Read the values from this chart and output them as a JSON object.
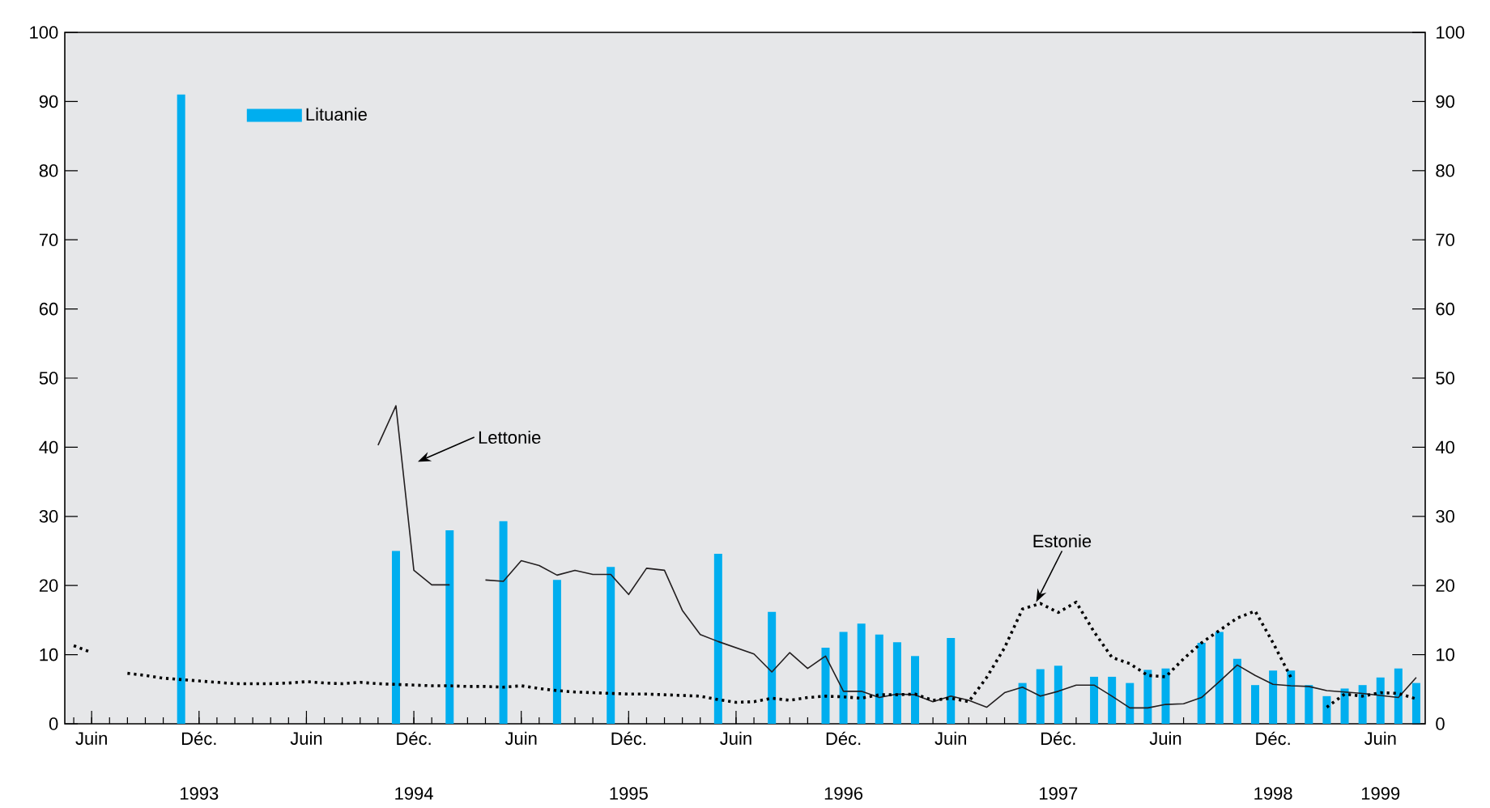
{
  "chart_data": {
    "type": "bar",
    "categories": [
      null,
      "Juin",
      null,
      null,
      null,
      null,
      null,
      "Déc.",
      null,
      null,
      null,
      null,
      null,
      "Juin",
      null,
      null,
      null,
      null,
      null,
      "Déc.",
      null,
      null,
      null,
      null,
      null,
      "Juin",
      null,
      null,
      null,
      null,
      null,
      "Déc.",
      null,
      null,
      null,
      null,
      null,
      "Juin",
      null,
      null,
      null,
      null,
      null,
      "Déc.",
      null,
      null,
      null,
      null,
      null,
      "Juin",
      null,
      null,
      null,
      null,
      null,
      "Déc.",
      null,
      null,
      null,
      null,
      null,
      "Juin",
      null,
      null,
      null,
      null,
      null,
      "Déc.",
      null,
      null,
      null,
      null,
      null,
      "Juin",
      null,
      null
    ],
    "series": [
      {
        "name": "Lituanie",
        "color": "#00aeef",
        "values": [
          null,
          null,
          null,
          null,
          null,
          null,
          91,
          null,
          null,
          null,
          null,
          null,
          null,
          null,
          null,
          null,
          null,
          null,
          25,
          null,
          null,
          28,
          null,
          null,
          29.3,
          null,
          null,
          20.8,
          null,
          null,
          22.7,
          null,
          null,
          null,
          null,
          null,
          24.6,
          null,
          null,
          16.2,
          null,
          null,
          11,
          13.3,
          14.5,
          12.9,
          11.8,
          9.8,
          null,
          12.4,
          null,
          null,
          null,
          5.9,
          7.9,
          8.4,
          null,
          6.8,
          6.8,
          5.9,
          7.8,
          8.0,
          null,
          11.7,
          13.3,
          9.4,
          5.6,
          7.7,
          7.7,
          5.6,
          4.0,
          5.1,
          5.6,
          6.7,
          8.0,
          5.9
        ]
      },
      {
        "type": "line",
        "color": "#231f20",
        "line_style": "solid",
        "values": [
          null,
          null,
          null,
          null,
          null,
          null,
          null,
          null,
          null,
          null,
          null,
          null,
          null,
          null,
          null,
          null,
          null,
          40.3,
          46,
          22.2,
          20.1,
          20.1,
          null,
          20.8,
          20.6,
          23.6,
          22.9,
          21.5,
          22.2,
          21.6,
          21.6,
          18.7,
          22.5,
          22.2,
          16.4,
          12.9,
          11.9,
          11,
          10.1,
          7.5,
          10.3,
          8.0,
          9.8,
          4.7,
          4.7,
          3.8,
          4.3,
          4.2,
          3.2,
          4.0,
          3.4,
          2.4,
          4.5,
          5.3,
          4.0,
          4.7,
          5.6,
          5.6,
          4.0,
          2.3,
          2.3,
          2.8,
          2.9,
          3.8,
          6.1,
          8.5,
          7.0,
          5.7,
          5.5,
          5.4,
          4.8,
          4.6,
          4.4,
          4.1,
          3.8,
          6.7
        ]
      },
      {
        "type": "line",
        "color": "#000000",
        "line_style": "dotted",
        "values": [
          11.3,
          10.3,
          null,
          7.3,
          7.0,
          6.6,
          6.4,
          6.2,
          6.0,
          5.8,
          5.8,
          5.8,
          5.9,
          6.1,
          5.9,
          5.8,
          6.0,
          5.8,
          5.7,
          5.6,
          5.5,
          5.5,
          5.4,
          5.4,
          5.3,
          5.5,
          5.1,
          4.8,
          4.6,
          4.5,
          4.4,
          4.3,
          4.3,
          4.2,
          4.1,
          4.0,
          3.5,
          3.1,
          3.2,
          3.7,
          3.4,
          3.8,
          4.0,
          3.9,
          3.7,
          4.2,
          4.2,
          4.3,
          3.4,
          3.7,
          3.2,
          6.7,
          11,
          16.6,
          17.4,
          16.1,
          17.6,
          13.3,
          9.6,
          8.7,
          7.0,
          6.8,
          9.4,
          11.7,
          13.5,
          15.3,
          16.3,
          11.7,
          6.7,
          null,
          2.4,
          4.3,
          4.0,
          4.5,
          4.4,
          3.6
        ]
      }
    ],
    "ylim": [
      0,
      100
    ],
    "yticks": [
      0,
      10,
      20,
      30,
      40,
      50,
      60,
      70,
      80,
      90,
      100
    ],
    "y2lim": [
      0,
      100
    ],
    "y2ticks": [
      0,
      10,
      20,
      30,
      40,
      50,
      60,
      70,
      80,
      90,
      100
    ],
    "annotations": [
      "Lettonie",
      "Estonie",
      "1993",
      "1994",
      "1995",
      "1996",
      "1997",
      "1998",
      "1999"
    ],
    "legend": "top left"
  }
}
